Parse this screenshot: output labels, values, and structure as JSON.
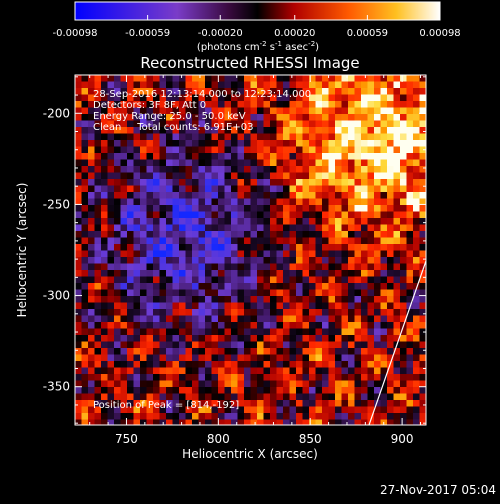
{
  "chart_data": {
    "type": "heatmap",
    "title": "Reconstructed RHESSI Image",
    "xlabel": "Heliocentric X (arcsec)",
    "ylabel": "Heliocentric Y (arcsec)",
    "xlim": [
      722,
      913
    ],
    "ylim": [
      -371,
      -179
    ],
    "x_ticks": [
      750,
      800,
      850,
      900
    ],
    "y_ticks": [
      -200,
      -250,
      -300,
      -350
    ],
    "colorbar": {
      "ticks": [
        "-0.00098",
        "-0.00059",
        "-0.00020",
        "0.00020",
        "0.00059",
        "0.00098"
      ],
      "tick_values": [
        -0.00098,
        -0.00059,
        -0.0002,
        0.0002,
        0.00059,
        0.00098
      ],
      "range": [
        -0.00098,
        0.00098
      ],
      "unit_label": "(photons cm",
      "unit_exp1": "-2",
      "unit_mid": " s",
      "unit_exp2": "-1",
      "unit_mid2": " asec",
      "unit_exp3": "-2",
      "unit_end": ")"
    },
    "annotations": [
      "28-Sep-2016 12:13:14.000 to 12:23:14.000",
      "Detectors: 3F 8F, Att 0",
      "Energy Range: 25.0 - 50.0 keV",
      "Clean     Total counts: 6.91E+03"
    ],
    "peak_label": "Position of Peak = [814,-192]",
    "peak_position": [
      814,
      -192
    ],
    "limb_line": {
      "x": [
        882,
        913
      ],
      "y": [
        -371,
        -281
      ]
    }
  },
  "footer": {
    "date": "27-Nov-2017 05:04"
  },
  "colors": {
    "blue": "#1f3cff",
    "purple": "#5a2fb0",
    "red": "#e81010",
    "orange": "#ff8a00",
    "yellow": "#ffe84a",
    "white": "#ffffff"
  }
}
